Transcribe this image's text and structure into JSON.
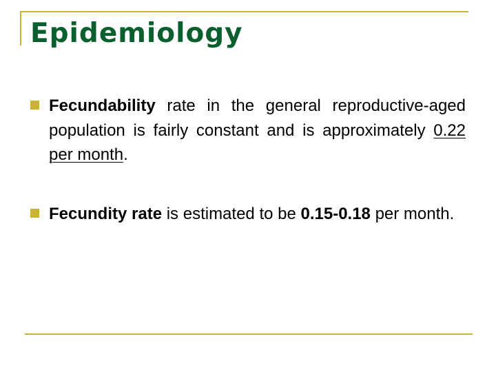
{
  "slide": {
    "title": "Epidemiology",
    "accent_color": "#c9b234",
    "title_color": "#0b5e2d",
    "bullets": [
      {
        "term": "Fecundability",
        "text_before_value": "rate in the general reproductive-aged population is fairly constant and is approximately ",
        "value": "0.22 per month",
        "text_after_value": "."
      },
      {
        "term": "Fecundity rate",
        "text_before_value": "is estimated to be ",
        "value": "0.15-0.18",
        "text_after_value": " per month."
      }
    ]
  }
}
